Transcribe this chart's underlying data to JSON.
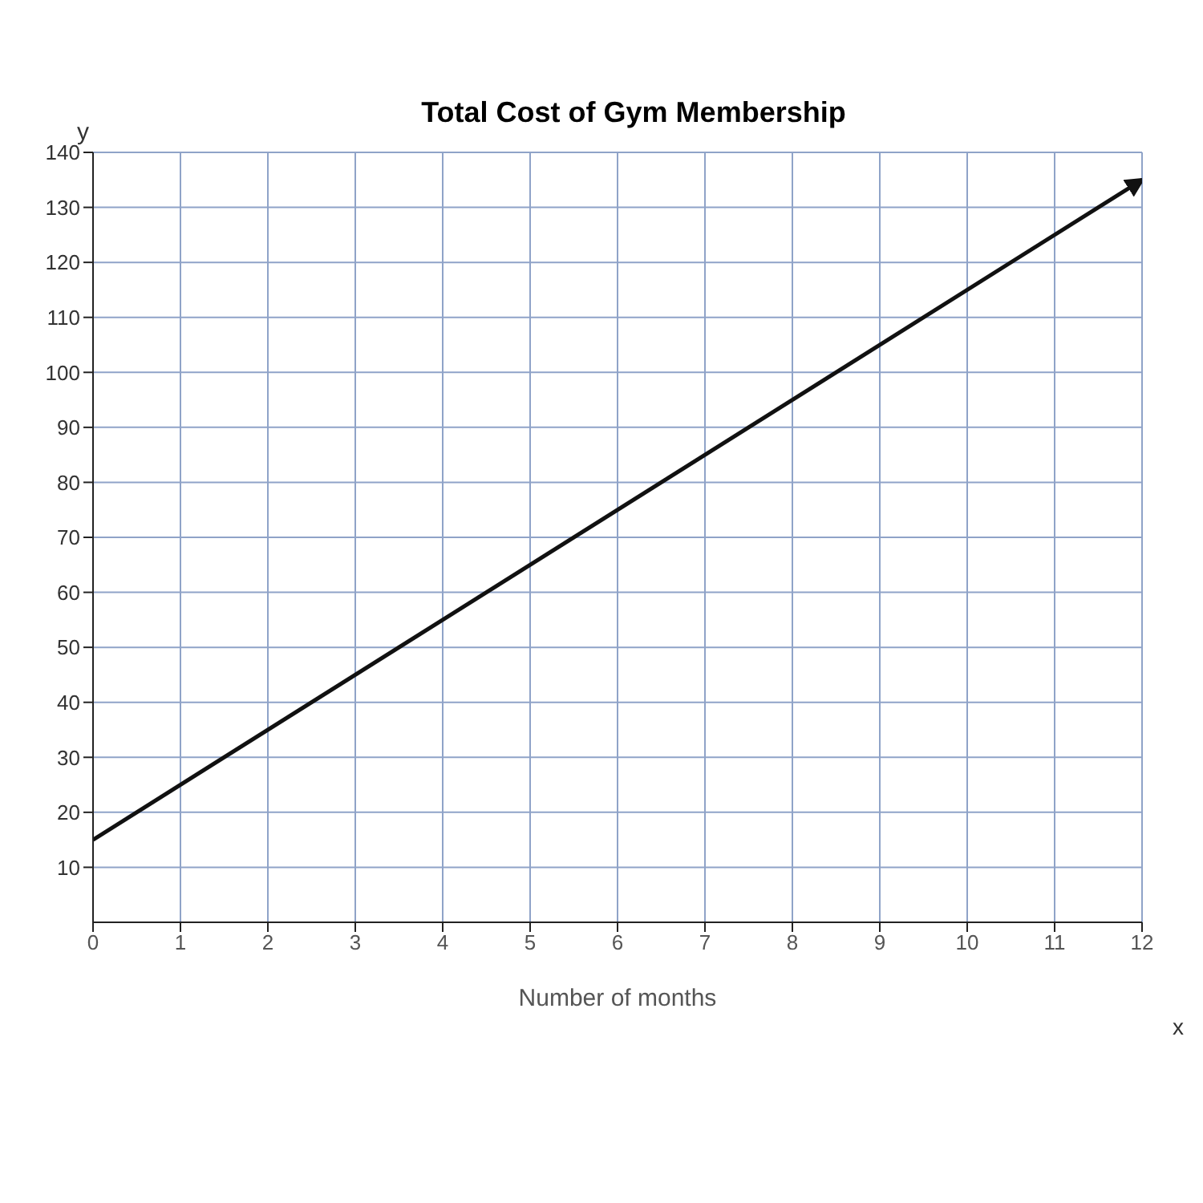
{
  "chart_data": {
    "type": "line",
    "title": "Total Cost of Gym Membership",
    "xlabel": "Number of months",
    "ylabel": "y",
    "annotations": [
      "x"
    ],
    "x": [
      0,
      12
    ],
    "series": [
      {
        "color": "#111111",
        "values": [
          15,
          135
        ]
      }
    ],
    "xlim": [
      0,
      12
    ],
    "xticks": [
      0,
      1,
      2,
      3,
      4,
      5,
      6,
      7,
      8,
      9,
      10,
      11,
      12
    ],
    "ylim": [
      0,
      140
    ],
    "yticks": [
      10,
      20,
      30,
      40,
      50,
      60,
      70,
      80,
      90,
      100,
      110,
      120,
      130,
      140
    ],
    "grid": true,
    "marker": "none",
    "line_style": "solid",
    "legend": false
  }
}
